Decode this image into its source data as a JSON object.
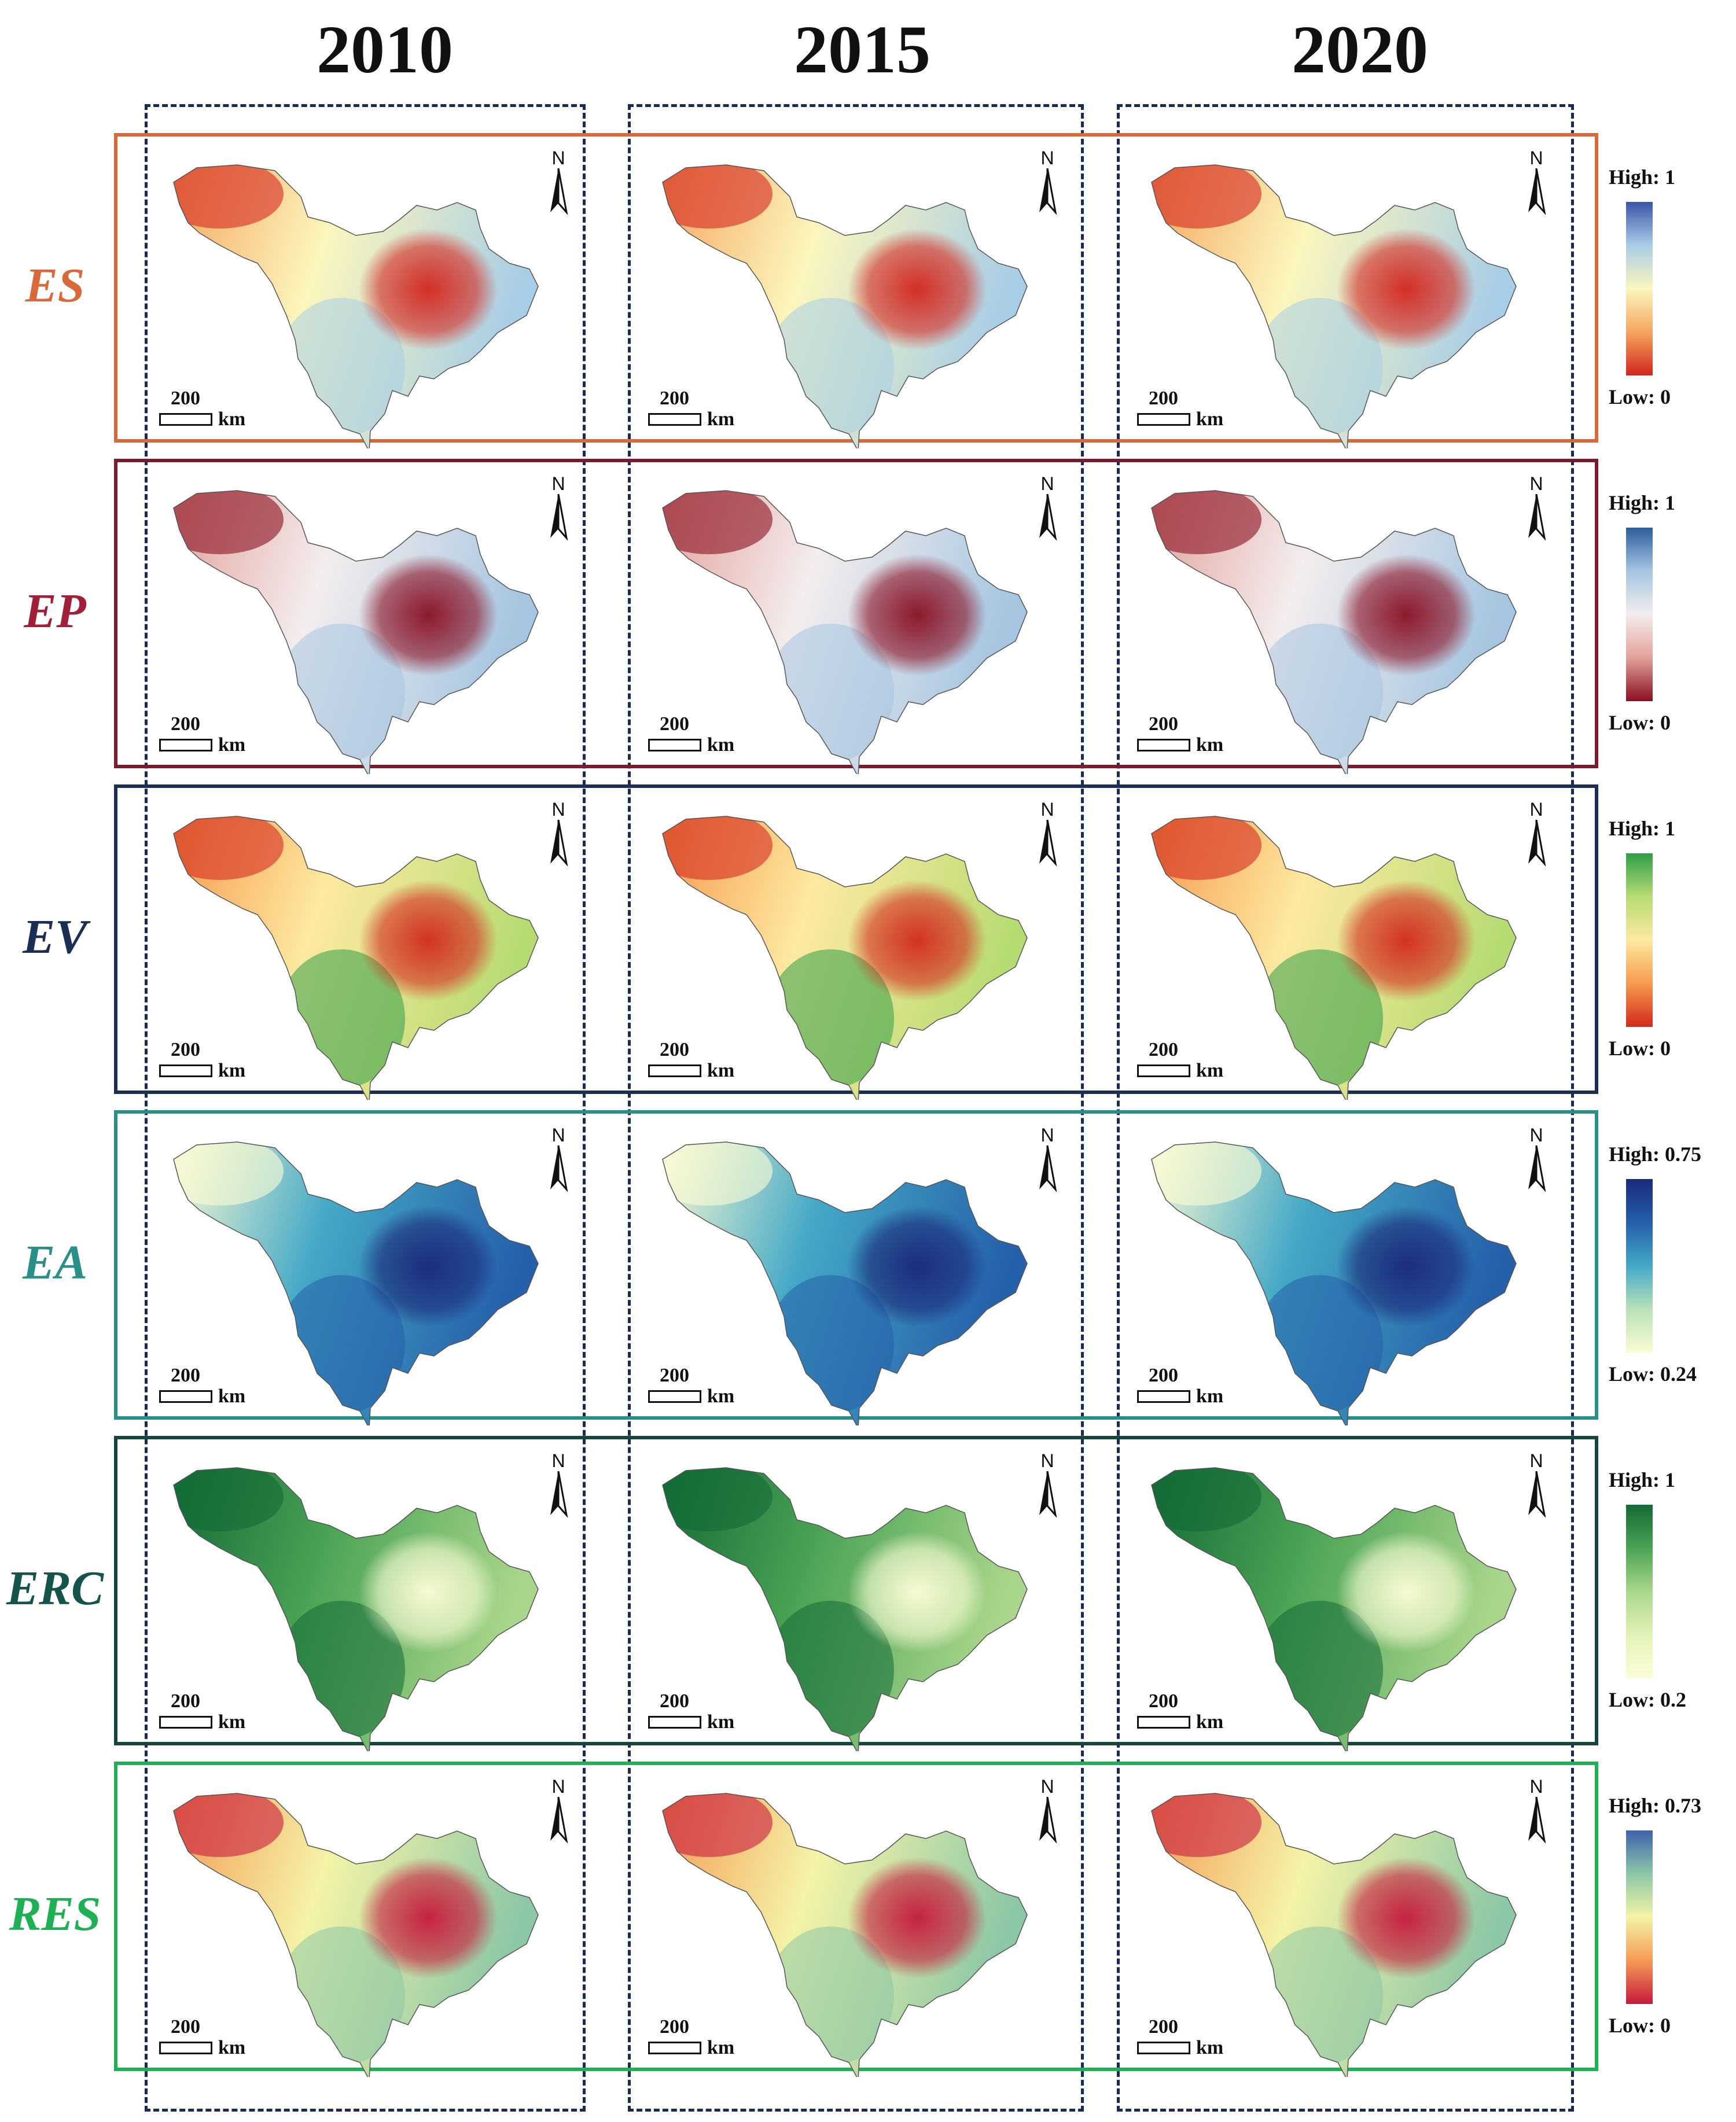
{
  "years": [
    "2010",
    "2015",
    "2020"
  ],
  "north_label": "N",
  "scale": {
    "value": "200",
    "unit": "km"
  },
  "rows": [
    {
      "label": "ES",
      "label_color": "#d8693a",
      "box_color": "#d8693a",
      "legend_high": "High: 1",
      "legend_low": "Low: 0",
      "ramp": [
        "#3b55a8",
        "#a8cde6",
        "#fbf6bd",
        "#f5a55e",
        "#d4261e"
      ]
    },
    {
      "label": "EP",
      "label_color": "#a0203a",
      "box_color": "#7a1c30",
      "legend_high": "High: 1",
      "legend_low": "Low: 0",
      "ramp": [
        "#2d5e9e",
        "#a5c5e0",
        "#f3eded",
        "#e3a19b",
        "#8a0f22"
      ]
    },
    {
      "label": "EV",
      "label_color": "#1d2e55",
      "box_color": "#1d2e55",
      "legend_high": "High: 1",
      "legend_low": "Low: 0",
      "ramp": [
        "#2f9e49",
        "#b7db73",
        "#fde9a0",
        "#f59a4e",
        "#d42a1d"
      ]
    },
    {
      "label": "EA",
      "label_color": "#2a8f88",
      "box_color": "#2a8f88",
      "legend_high": "High: 0.75",
      "legend_low": "Low: 0.24",
      "ramp": [
        "#1c2a7a",
        "#2560aa",
        "#44a8c6",
        "#b8e1b8",
        "#fcfbd3"
      ]
    },
    {
      "label": "ERC",
      "label_color": "#15544a",
      "box_color": "#15453f",
      "legend_high": "High: 1",
      "legend_low": "Low: 0.2",
      "ramp": [
        "#136b37",
        "#4aa354",
        "#a9d68c",
        "#e3f2b8",
        "#fcfdd6"
      ]
    },
    {
      "label": "RES",
      "label_color": "#1fb055",
      "box_color": "#1fb055",
      "legend_high": "High: 0.73",
      "legend_low": "Low: 0",
      "ramp": [
        "#3f62ad",
        "#8cc7a6",
        "#f4f3a6",
        "#f59a55",
        "#c8193c"
      ]
    }
  ]
}
